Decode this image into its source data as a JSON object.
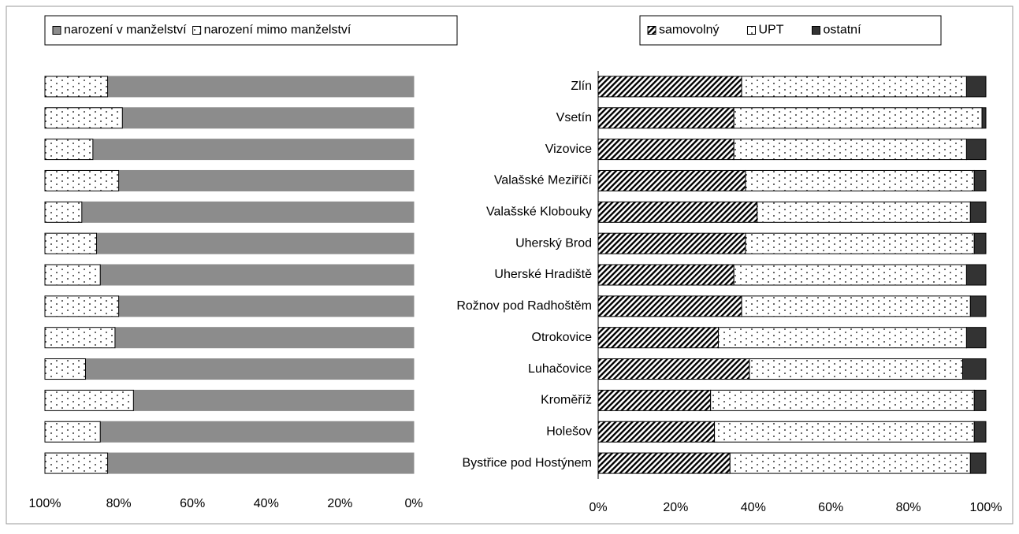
{
  "chart_data": [
    {
      "type": "stacked-barh",
      "orientation": "horizontal",
      "legend": "top-left",
      "xreversed": true,
      "xlim": [
        100,
        0
      ],
      "xticks": [
        {
          "value": 100,
          "label": "100%"
        },
        {
          "value": 80,
          "label": "80%"
        },
        {
          "value": 60,
          "label": "60%"
        },
        {
          "value": 40,
          "label": "40%"
        },
        {
          "value": 20,
          "label": "20%"
        },
        {
          "value": 0,
          "label": "0%"
        }
      ],
      "series": [
        {
          "name": "narození v manželství",
          "color": "#8c8c8c",
          "pattern": "solid",
          "values": [
            83,
            79,
            87,
            80,
            90,
            86,
            85,
            80,
            81,
            89,
            76,
            85,
            83
          ]
        },
        {
          "name": "narození mimo manželství",
          "color": "#ffffff",
          "pattern": "dots",
          "values": [
            17,
            21,
            13,
            20,
            10,
            14,
            15,
            20,
            19,
            11,
            24,
            15,
            17
          ]
        }
      ]
    },
    {
      "type": "stacked-barh",
      "orientation": "horizontal",
      "legend": "top-right",
      "xreversed": false,
      "xlim": [
        0,
        100
      ],
      "xticks": [
        {
          "value": 0,
          "label": "0%"
        },
        {
          "value": 20,
          "label": "20%"
        },
        {
          "value": 40,
          "label": "40%"
        },
        {
          "value": 60,
          "label": "60%"
        },
        {
          "value": 80,
          "label": "80%"
        },
        {
          "value": 100,
          "label": "100%"
        }
      ],
      "categories": [
        "Zlín",
        "Vsetín",
        "Vizovice",
        "Valašské Meziříčí",
        "Valašské Klobouky",
        "Uherský Brod",
        "Uherské Hradiště",
        "Rožnov pod Radhoštěm",
        "Otrokovice",
        "Luhačovice",
        "Kroměříž",
        "Holešov",
        "Bystřice pod Hostýnem"
      ],
      "series": [
        {
          "name": "samovolný",
          "color": "#000000",
          "pattern": "hatch",
          "values": [
            37,
            35,
            35,
            38,
            41,
            38,
            35,
            37,
            31,
            39,
            29,
            30,
            34
          ]
        },
        {
          "name": "UPT",
          "color": "#ffffff",
          "pattern": "dots",
          "values": [
            58,
            64,
            60,
            59,
            55,
            59,
            60,
            59,
            64,
            55,
            68,
            67,
            62
          ]
        },
        {
          "name": "ostatní",
          "color": "#333333",
          "pattern": "solid",
          "values": [
            5,
            1,
            5,
            3,
            4,
            3,
            5,
            4,
            5,
            6,
            3,
            3,
            4
          ]
        }
      ]
    }
  ]
}
